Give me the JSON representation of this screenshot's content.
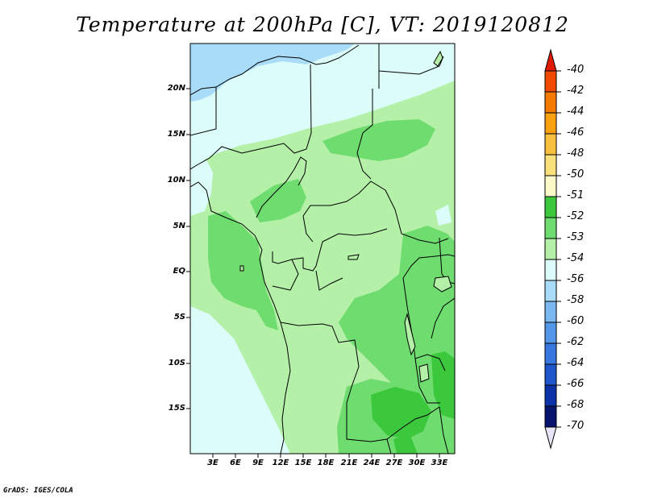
{
  "title": "Temperature at 200hPa [C], VT: 2019120812",
  "credit": "GrADS: IGES/COLA",
  "lat_ticks": [
    "20N",
    "15N",
    "10N",
    "5N",
    "EQ",
    "5S",
    "10S",
    "15S"
  ],
  "lon_ticks": [
    "3E",
    "6E",
    "9E",
    "12E",
    "15E",
    "18E",
    "21E",
    "24E",
    "27E",
    "30E",
    "33E"
  ],
  "colorbar": {
    "labels": [
      "-40",
      "-42",
      "-44",
      "-46",
      "-48",
      "-50",
      "-51",
      "-52",
      "-53",
      "-54",
      "-56",
      "-58",
      "-60",
      "-62",
      "-64",
      "-66",
      "-68",
      "-70"
    ],
    "colors": [
      "#e01a00",
      "#f04a00",
      "#f57a00",
      "#f8a010",
      "#f9c040",
      "#fae07a",
      "#fafac8",
      "#3cc83c",
      "#6edc6e",
      "#b4f0a8",
      "#dcfcfa",
      "#a8dcf8",
      "#7ab8f2",
      "#5498ea",
      "#3678e0",
      "#1e56cc",
      "#0c34a8",
      "#06146e",
      "#e6e6f8"
    ]
  },
  "palette": {
    "light_cyan": "#dcfcfa",
    "light_blue": "#a8dcf8",
    "pale_green": "#b4f0a8",
    "green": "#6edc6e",
    "dark_green": "#3cc83c"
  }
}
